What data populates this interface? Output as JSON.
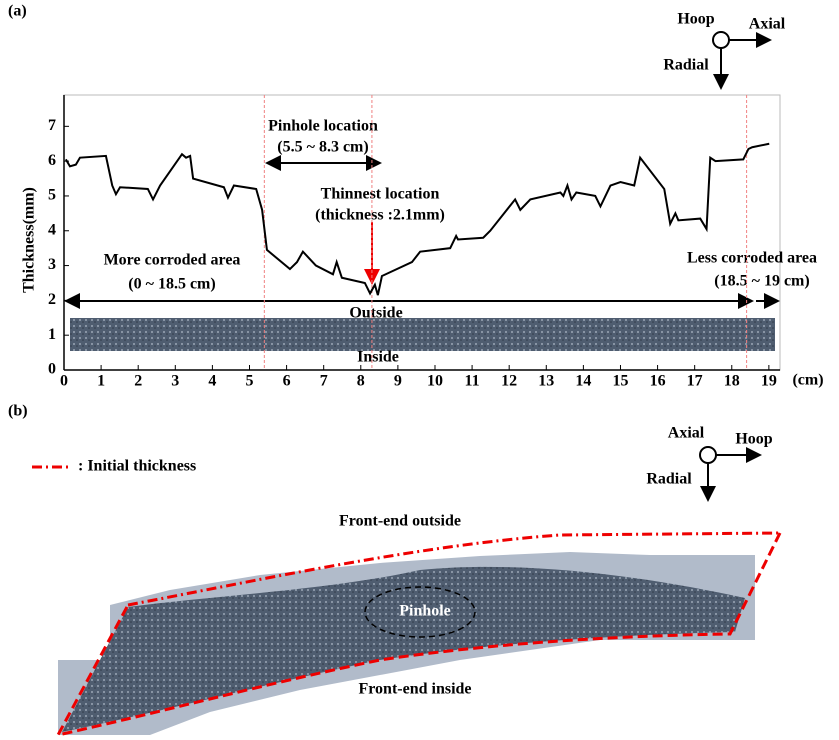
{
  "chart_data": {
    "type": "line",
    "panel_label": "(a)",
    "y_label": "Thickness(mm)",
    "x_unit": "(cm)",
    "x": [
      0.05,
      0.16,
      0.32,
      0.43,
      1.13,
      1.3,
      1.4,
      1.51,
      2.26,
      2.4,
      2.59,
      3.18,
      3.29,
      3.4,
      3.48,
      4.31,
      4.42,
      4.58,
      5.18,
      5.34,
      5.47,
      6.09,
      6.28,
      6.44,
      6.79,
      7.25,
      7.35,
      7.49,
      8.11,
      8.25,
      8.38,
      8.46,
      8.57,
      9.38,
      9.6,
      10.41,
      10.57,
      10.62,
      11.3,
      11.49,
      12.16,
      12.3,
      12.57,
      13.38,
      13.46,
      13.57,
      13.68,
      13.81,
      14.32,
      14.46,
      14.73,
      15.0,
      15.37,
      15.53,
      16.18,
      16.34,
      16.48,
      16.56,
      17.15,
      17.32,
      17.42,
      17.56,
      18.31,
      18.45,
      18.55,
      19.01
    ],
    "values": [
      6.05,
      5.85,
      5.9,
      6.1,
      6.15,
      5.3,
      5.05,
      5.25,
      5.2,
      4.9,
      5.3,
      6.2,
      6.1,
      6.15,
      5.5,
      5.25,
      4.95,
      5.3,
      5.2,
      4.6,
      3.45,
      2.9,
      3.1,
      3.4,
      3.0,
      2.75,
      3.1,
      2.65,
      2.5,
      2.2,
      2.45,
      2.15,
      2.7,
      3.1,
      3.4,
      3.5,
      3.85,
      3.75,
      3.8,
      4.0,
      4.9,
      4.6,
      4.9,
      5.1,
      5.0,
      5.3,
      4.9,
      5.1,
      5.0,
      4.7,
      5.3,
      5.4,
      5.3,
      6.1,
      5.2,
      4.2,
      4.5,
      4.3,
      4.35,
      4.05,
      6.1,
      6.0,
      6.05,
      6.35,
      6.4,
      6.5
    ],
    "color": "#000000",
    "xlim": [
      0,
      19.3
    ],
    "ylim": [
      0,
      7.9
    ],
    "xticks": [
      0,
      1,
      2,
      3,
      4,
      5,
      6,
      7,
      8,
      9,
      10,
      11,
      12,
      13,
      14,
      15,
      16,
      17,
      18,
      19
    ],
    "yticks": [
      0,
      1,
      2,
      3,
      4,
      5,
      6,
      7
    ],
    "reference_lines": [
      5.4,
      8.3,
      18.4
    ],
    "reference_color": "#f08080",
    "annotations": {
      "pinhole": "Pinhole location",
      "pinhole_range": "(5.5 ~ 8.3 cm)",
      "thinnest": "Thinnest location",
      "thinnest_value": "(thickness :2.1mm)",
      "more": "More corroded area",
      "more_range": "(0 ~ 18.5 cm)",
      "less": "Less corroded area",
      "less_range": "(18.5 ~ 19 cm)",
      "outside": "Outside",
      "inside": "Inside"
    },
    "axes_icon": {
      "hoop": "Hoop",
      "axial": "Axial",
      "radial": "Radial"
    }
  },
  "panel_b": {
    "label": "(b)",
    "legend": ": Initial thickness",
    "axes_icon": {
      "axial": "Axial",
      "hoop": "Hoop",
      "radial": "Radial"
    },
    "outside": "Front-end outside",
    "inside": "Front-end inside",
    "pinhole": "Pinhole"
  }
}
